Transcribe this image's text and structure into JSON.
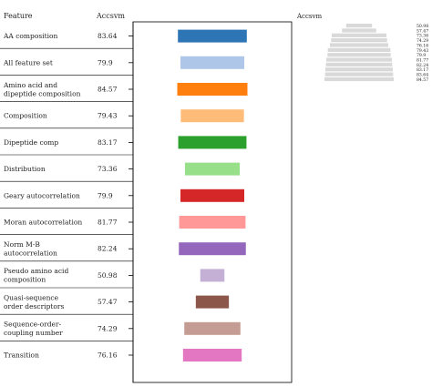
{
  "chart_data": {
    "type": "bar",
    "headers": {
      "feature": "Feature",
      "accsvm": "Accsvm"
    },
    "inset_title": "Accsvm",
    "categories": [
      [
        "AA composition"
      ],
      [
        "All feature set"
      ],
      [
        "Amino acid and",
        "dipeptide composition"
      ],
      [
        "Composition"
      ],
      [
        "Dipeptide comp"
      ],
      [
        "Distribution"
      ],
      [
        "Geary autocorrelation"
      ],
      [
        "Moran autocorrelation"
      ],
      [
        "Norm M-B",
        "autocorrelation"
      ],
      [
        "Pseudo amino acid",
        "composition"
      ],
      [
        "Quasi-sequence",
        "order descriptors"
      ],
      [
        "Sequence-order-",
        "coupling number"
      ],
      [
        "Transition"
      ]
    ],
    "values": [
      83.64,
      79.9,
      84.57,
      79.43,
      83.17,
      73.36,
      79.9,
      81.77,
      82.24,
      50.98,
      57.47,
      74.29,
      76.16
    ],
    "value_labels": [
      "83.64",
      "79.9",
      "84.57",
      "79.43",
      "83.17",
      "73.36",
      "79.9",
      "81.77",
      "82.24",
      "50.98",
      "57.47",
      "74.29",
      "76.16"
    ],
    "colors": [
      "#2e75b6",
      "#aec7e8",
      "#ff7f0e",
      "#ffbb78",
      "#2ca02c",
      "#98df8a",
      "#d62728",
      "#ff9896",
      "#9467bd",
      "#c5b0d5",
      "#8c564b",
      "#c49c94",
      "#e377c2"
    ],
    "inset": {
      "values": [
        50.98,
        57.47,
        73.36,
        74.29,
        76.16,
        79.43,
        79.9,
        81.77,
        82.24,
        83.17,
        83.64,
        84.57
      ],
      "labels": [
        "50.98",
        "57.47",
        "73.36",
        "74.29",
        "76.16",
        "79.43",
        "79.9",
        "81.77",
        "82.24",
        "83.17",
        "83.64",
        "84.57"
      ],
      "color": "#d9d9d9"
    },
    "grid": false
  }
}
